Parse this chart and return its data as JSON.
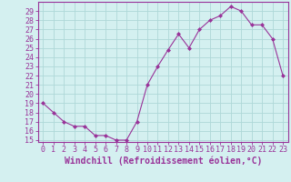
{
  "x": [
    0,
    1,
    2,
    3,
    4,
    5,
    6,
    7,
    8,
    9,
    10,
    11,
    12,
    13,
    14,
    15,
    16,
    17,
    18,
    19,
    20,
    21,
    22,
    23
  ],
  "y": [
    19,
    18,
    17,
    16.5,
    16.5,
    15.5,
    15.5,
    15,
    15,
    17,
    21,
    23,
    24.8,
    26.5,
    25,
    27,
    28,
    28.5,
    29.5,
    29,
    27.5,
    27.5,
    26,
    22
  ],
  "ylim": [
    14.8,
    30.0
  ],
  "xlim": [
    -0.5,
    23.5
  ],
  "yticks": [
    15,
    16,
    17,
    18,
    19,
    20,
    21,
    22,
    23,
    24,
    25,
    26,
    27,
    28,
    29
  ],
  "xticks": [
    0,
    1,
    2,
    3,
    4,
    5,
    6,
    7,
    8,
    9,
    10,
    11,
    12,
    13,
    14,
    15,
    16,
    17,
    18,
    19,
    20,
    21,
    22,
    23
  ],
  "xlabel": "Windchill (Refroidissement éolien,°C)",
  "line_color": "#993399",
  "marker": "D",
  "marker_size": 2.0,
  "bg_color": "#d4f0f0",
  "grid_color": "#aed8d8",
  "axis_color": "#993399",
  "label_color": "#993399",
  "tick_label_color": "#993399",
  "font_size": 6.0,
  "xlabel_font_size": 7.0
}
